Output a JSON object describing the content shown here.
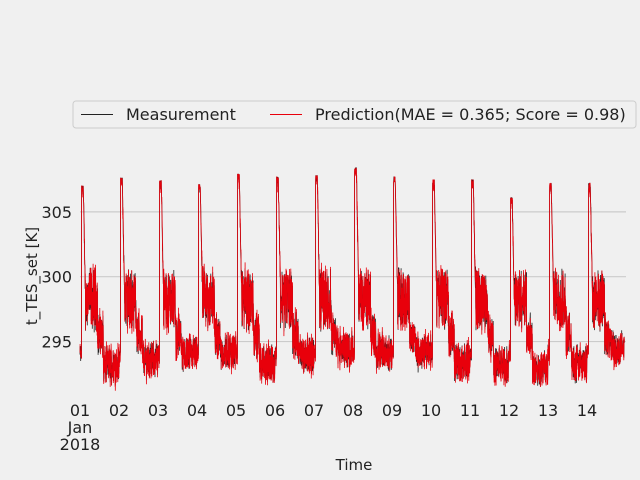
{
  "chart_data": {
    "type": "line",
    "title": "",
    "xlabel": "Time",
    "ylabel": "t_TES_set [K]",
    "x_start": "2018-01-01",
    "x_end": "2018-01-14T23:00",
    "xlim": [
      "2018-01-01",
      "2018-01-15"
    ],
    "ylim": [
      290.8,
      309
    ],
    "yticks": [
      295,
      300,
      305
    ],
    "xticks": [
      {
        "label": "01",
        "sub": "Jan",
        "sub2": "2018"
      },
      {
        "label": "02"
      },
      {
        "label": "03"
      },
      {
        "label": "04"
      },
      {
        "label": "05"
      },
      {
        "label": "06"
      },
      {
        "label": "07"
      },
      {
        "label": "08"
      },
      {
        "label": "09"
      },
      {
        "label": "10"
      },
      {
        "label": "11"
      },
      {
        "label": "12"
      },
      {
        "label": "13"
      },
      {
        "label": "14"
      }
    ],
    "grid": true,
    "legend_position": "top",
    "daily_peak_values": [
      307.0,
      307.6,
      307.4,
      307.1,
      307.9,
      307.7,
      307.8,
      308.4,
      307.7,
      307.5,
      307.5,
      306.1,
      307.2,
      307.2
    ],
    "daily_min_values": [
      291.2,
      291.6,
      292.0,
      292.2,
      291.3,
      292.0,
      292.4,
      292.3,
      292.1,
      291.5,
      291.2,
      291.0,
      291.3,
      292.4
    ],
    "series": [
      {
        "name": "Measurement",
        "color": "#222222"
      },
      {
        "name": "Prediction(MAE = 0.365; Score = 0.98)",
        "color": "#e8000b"
      }
    ]
  }
}
